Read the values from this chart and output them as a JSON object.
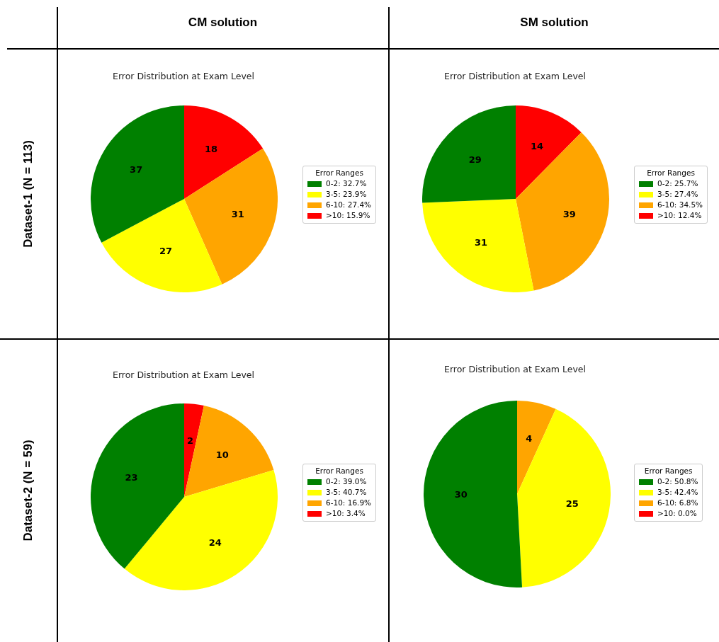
{
  "chart_data": [
    {
      "type": "pie",
      "title": "Error Distribution at Exam Level",
      "annotations": [
        "CM solution",
        "Dataset-1 (N = 113)"
      ],
      "legend_title": "Error Ranges",
      "legend": "right",
      "data_labels": true,
      "categories": [
        "0-2: 32.7%",
        "3-5: 23.9%",
        "6-10: 27.4%",
        ">10: 15.9%"
      ],
      "values": [
        37,
        27,
        31,
        18
      ],
      "colors": [
        "#008000",
        "#ffff00",
        "#ffa500",
        "#ff0000"
      ]
    },
    {
      "type": "pie",
      "title": "Error Distribution at Exam Level",
      "annotations": [
        "SM solution"
      ],
      "legend_title": "Error Ranges",
      "legend": "right",
      "data_labels": true,
      "categories": [
        "0-2: 25.7%",
        "3-5: 27.4%",
        "6-10: 34.5%",
        ">10: 12.4%"
      ],
      "values": [
        29,
        31,
        39,
        14
      ],
      "colors": [
        "#008000",
        "#ffff00",
        "#ffa500",
        "#ff0000"
      ]
    },
    {
      "type": "pie",
      "title": "Error Distribution at Exam Level",
      "annotations": [
        "Dataset-2 (N = 59)"
      ],
      "legend_title": "Error Ranges",
      "legend": "right",
      "data_labels": true,
      "categories": [
        "0-2: 39.0%",
        "3-5: 40.7%",
        "6-10: 16.9%",
        ">10: 3.4%"
      ],
      "values": [
        23,
        24,
        10,
        2
      ],
      "colors": [
        "#008000",
        "#ffff00",
        "#ffa500",
        "#ff0000"
      ]
    },
    {
      "type": "pie",
      "title": "Error Distribution at Exam Level",
      "legend_title": "Error Ranges",
      "legend": "right",
      "data_labels": true,
      "categories": [
        "0-2: 50.8%",
        "3-5: 42.4%",
        "6-10: 6.8%",
        ">10: 0.0%"
      ],
      "values": [
        30,
        25,
        4,
        0
      ],
      "colors": [
        "#008000",
        "#ffff00",
        "#ffa500",
        "#ff0000"
      ]
    }
  ]
}
